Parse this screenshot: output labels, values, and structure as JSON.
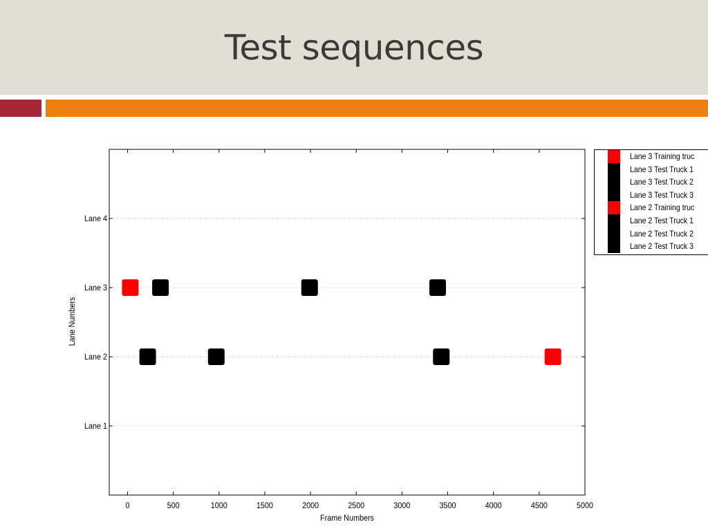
{
  "slide": {
    "title": "Test sequences"
  },
  "colors": {
    "title_band": "#e2ded2",
    "accent_red": "#a5273a",
    "accent_orange": "#ed7f0e",
    "training": "#ff0000",
    "test": "#000000"
  },
  "chart_data": {
    "type": "scatter",
    "xlabel": "Frame Numbers",
    "ylabel": "Lane Numbers",
    "xlim": [
      -200,
      5000
    ],
    "ylim": [
      0,
      5
    ],
    "x_ticks": [
      0,
      500,
      1000,
      1500,
      2000,
      2500,
      3000,
      3500,
      4000,
      4500,
      5000
    ],
    "x_tick_labels": [
      "0",
      "500",
      "1000",
      "1500",
      "2000",
      "2500",
      "3000",
      "3500",
      "4000",
      "4500",
      "5000"
    ],
    "y_ticks": [
      1,
      2,
      3,
      4
    ],
    "y_tick_labels": [
      "Lane 1",
      "Lane 2",
      "Lane 3",
      "Lane 4"
    ],
    "grid": "dotted horizontal",
    "legend_position": "outside top-right",
    "series": [
      {
        "name": "Lane 3 Training truc",
        "color": "#ff0000",
        "marker": "square",
        "points": [
          {
            "x": 30,
            "y": 3
          }
        ]
      },
      {
        "name": "Lane 3 Test Truck 1",
        "color": "#000000",
        "marker": "square",
        "points": [
          {
            "x": 360,
            "y": 3
          }
        ]
      },
      {
        "name": "Lane 3 Test Truck 2",
        "color": "#000000",
        "marker": "square",
        "points": [
          {
            "x": 1990,
            "y": 3
          }
        ]
      },
      {
        "name": "Lane 3 Test Truck 3",
        "color": "#000000",
        "marker": "square",
        "points": [
          {
            "x": 3390,
            "y": 3
          }
        ]
      },
      {
        "name": "Lane 2 Training truc",
        "color": "#ff0000",
        "marker": "square",
        "points": [
          {
            "x": 4650,
            "y": 2
          }
        ]
      },
      {
        "name": "Lane 2 Test Truck 1",
        "color": "#000000",
        "marker": "square",
        "points": [
          {
            "x": 220,
            "y": 2
          }
        ]
      },
      {
        "name": "Lane 2 Test Truck 2",
        "color": "#000000",
        "marker": "square",
        "points": [
          {
            "x": 970,
            "y": 2
          }
        ]
      },
      {
        "name": "Lane 2 Test Truck 3",
        "color": "#000000",
        "marker": "square",
        "points": [
          {
            "x": 3430,
            "y": 2
          }
        ]
      }
    ]
  }
}
